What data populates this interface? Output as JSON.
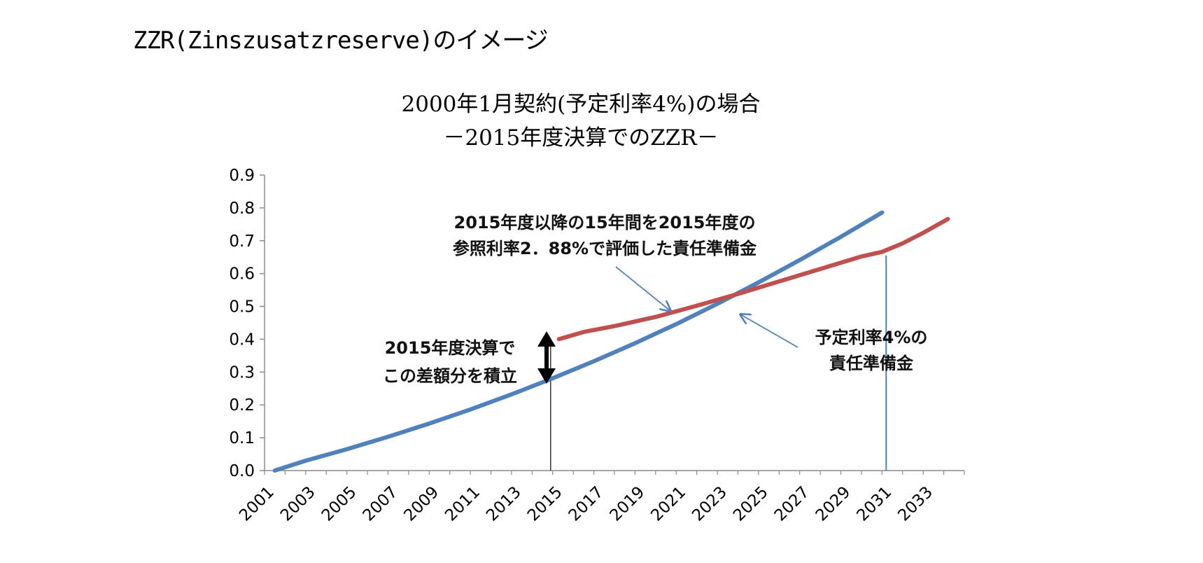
{
  "page": {
    "heading": "ZZR(Zinszusatzreserve)のイメージ"
  },
  "chart_data": {
    "type": "line",
    "title": "2000年1月契約(予定利率4%)の場合",
    "subtitle": "－2015年度決算でのZZR－",
    "xlabel": "",
    "ylabel": "",
    "ylim": [
      0,
      0.9
    ],
    "xlim": [
      2001,
      2035
    ],
    "y_ticks": [
      "0.0",
      "0.1",
      "0.2",
      "0.3",
      "0.4",
      "0.5",
      "0.6",
      "0.7",
      "0.8",
      "0.9"
    ],
    "x_ticks": [
      "2001",
      "2003",
      "2005",
      "2007",
      "2009",
      "2011",
      "2013",
      "2015",
      "2017",
      "2019",
      "2021",
      "2023",
      "2025",
      "2027",
      "2029",
      "2031",
      "2033"
    ],
    "grid": false,
    "legend": "none",
    "series": [
      {
        "color": "#4f81bd",
        "x": [
          2001.5,
          2003,
          2005,
          2007,
          2009,
          2011,
          2013,
          2015,
          2017,
          2019,
          2021,
          2023,
          2025,
          2027,
          2029,
          2031
        ],
        "y": [
          0.0,
          0.03,
          0.065,
          0.103,
          0.143,
          0.186,
          0.232,
          0.281,
          0.333,
          0.388,
          0.446,
          0.508,
          0.573,
          0.641,
          0.712,
          0.786
        ]
      },
      {
        "color": "#c0504d",
        "x": [
          2015.3,
          2016.5,
          2018,
          2020,
          2022,
          2024,
          2026,
          2028,
          2030,
          2031,
          2032,
          2033,
          2034.2
        ],
        "y": [
          0.4,
          0.422,
          0.44,
          0.468,
          0.502,
          0.538,
          0.576,
          0.614,
          0.652,
          0.666,
          0.692,
          0.724,
          0.766
        ]
      }
    ],
    "markers": [
      {
        "x": 2014.9,
        "from": 0.0,
        "to": 0.4
      },
      {
        "x": 2031.2,
        "from": 0.0,
        "to": 0.655
      }
    ],
    "annotations": {
      "red_label": [
        "2015年度以降の15年間を2015年度の",
        "参照利率2．88%で評価した責任準備金"
      ],
      "blue_label": [
        "予定利率4%の",
        "責任準備金"
      ],
      "gap_label": [
        "2015年度決算で",
        "この差額分を積立"
      ]
    }
  }
}
